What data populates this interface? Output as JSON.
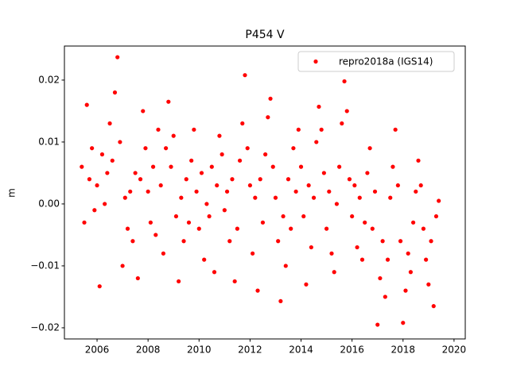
{
  "chart_data": {
    "type": "scatter",
    "title": "P454 V",
    "y_label": "m",
    "xlim": [
      2004.72,
      2020.44
    ],
    "ylim": [
      -0.0218,
      0.0255
    ],
    "xticks": [
      2006,
      2008,
      2010,
      2012,
      2014,
      2016,
      2018,
      2020
    ],
    "yticks": [
      {
        "value": -0.02,
        "label": "−0.02"
      },
      {
        "value": -0.01,
        "label": "−0.01"
      },
      {
        "value": 0,
        "label": "0.00"
      },
      0.01,
      0.02
    ],
    "legend": "upper right",
    "series": [
      {
        "name": "repro2018a (IGS14)",
        "color": "#ff0000",
        "x": [
          2005.4,
          2005.5,
          2005.6,
          2005.7,
          2005.8,
          2005.9,
          2006.0,
          2006.1,
          2006.2,
          2006.3,
          2006.4,
          2006.5,
          2006.6,
          2006.7,
          2006.8,
          2006.9,
          2007.0,
          2007.1,
          2007.2,
          2007.3,
          2007.4,
          2007.5,
          2007.6,
          2007.7,
          2007.8,
          2007.9,
          2008.0,
          2008.1,
          2008.2,
          2008.3,
          2008.4,
          2008.5,
          2008.6,
          2008.7,
          2008.8,
          2008.9,
          2009.0,
          2009.1,
          2009.2,
          2009.3,
          2009.4,
          2009.5,
          2009.6,
          2009.7,
          2009.8,
          2009.9,
          2010.0,
          2010.1,
          2010.2,
          2010.3,
          2010.4,
          2010.5,
          2010.6,
          2010.7,
          2010.8,
          2010.9,
          2011.0,
          2011.1,
          2011.2,
          2011.3,
          2011.4,
          2011.5,
          2011.6,
          2011.7,
          2011.8,
          2011.9,
          2012.0,
          2012.1,
          2012.2,
          2012.3,
          2012.4,
          2012.5,
          2012.6,
          2012.7,
          2012.8,
          2012.9,
          2013.0,
          2013.1,
          2013.2,
          2013.3,
          2013.4,
          2013.5,
          2013.6,
          2013.7,
          2013.8,
          2013.9,
          2014.0,
          2014.1,
          2014.2,
          2014.3,
          2014.4,
          2014.5,
          2014.6,
          2014.7,
          2014.8,
          2014.9,
          2015.0,
          2015.1,
          2015.2,
          2015.3,
          2015.4,
          2015.5,
          2015.6,
          2015.7,
          2015.8,
          2015.9,
          2016.0,
          2016.1,
          2016.2,
          2016.3,
          2016.4,
          2016.5,
          2016.6,
          2016.7,
          2016.8,
          2016.9,
          2017.0,
          2017.1,
          2017.2,
          2017.3,
          2017.4,
          2017.5,
          2017.6,
          2017.7,
          2017.8,
          2017.9,
          2018.0,
          2018.1,
          2018.2,
          2018.3,
          2018.4,
          2018.5,
          2018.6,
          2018.7,
          2018.8,
          2018.9,
          2019.0,
          2019.1,
          2019.2,
          2019.3,
          2019.4
        ],
        "values": [
          0.006,
          -0.003,
          0.016,
          0.004,
          0.009,
          -0.001,
          0.003,
          -0.0133,
          0.008,
          0.0,
          0.005,
          0.013,
          0.007,
          0.018,
          0.0237,
          0.01,
          -0.01,
          0.001,
          -0.004,
          0.002,
          -0.006,
          0.005,
          -0.012,
          0.004,
          0.015,
          0.009,
          0.002,
          -0.003,
          0.006,
          -0.005,
          0.012,
          0.003,
          -0.008,
          0.009,
          0.0165,
          0.006,
          0.011,
          -0.002,
          -0.0125,
          0.001,
          -0.006,
          0.004,
          -0.003,
          0.007,
          0.012,
          0.002,
          -0.004,
          0.005,
          -0.009,
          0.0,
          -0.002,
          0.006,
          -0.011,
          0.003,
          0.011,
          0.008,
          -0.001,
          0.002,
          -0.006,
          0.004,
          -0.0125,
          -0.004,
          0.007,
          0.013,
          0.0208,
          0.009,
          0.003,
          -0.008,
          0.001,
          -0.014,
          0.004,
          -0.003,
          0.008,
          0.014,
          0.017,
          0.006,
          0.001,
          -0.006,
          -0.0157,
          -0.002,
          -0.01,
          0.004,
          -0.004,
          0.009,
          0.002,
          0.012,
          0.006,
          -0.002,
          -0.013,
          0.003,
          -0.007,
          0.001,
          0.01,
          0.0157,
          0.012,
          0.005,
          -0.004,
          0.002,
          -0.008,
          -0.011,
          0.0,
          0.006,
          0.013,
          0.0198,
          0.015,
          0.004,
          -0.002,
          0.003,
          -0.007,
          0.001,
          -0.009,
          -0.003,
          0.005,
          0.009,
          -0.004,
          0.002,
          -0.0195,
          -0.012,
          -0.006,
          -0.015,
          -0.009,
          0.001,
          0.006,
          0.012,
          0.003,
          -0.006,
          -0.0192,
          -0.014,
          -0.008,
          -0.011,
          -0.003,
          0.002,
          0.007,
          0.003,
          -0.004,
          -0.009,
          -0.013,
          -0.006,
          -0.0165,
          -0.002,
          0.0005
        ]
      }
    ]
  }
}
